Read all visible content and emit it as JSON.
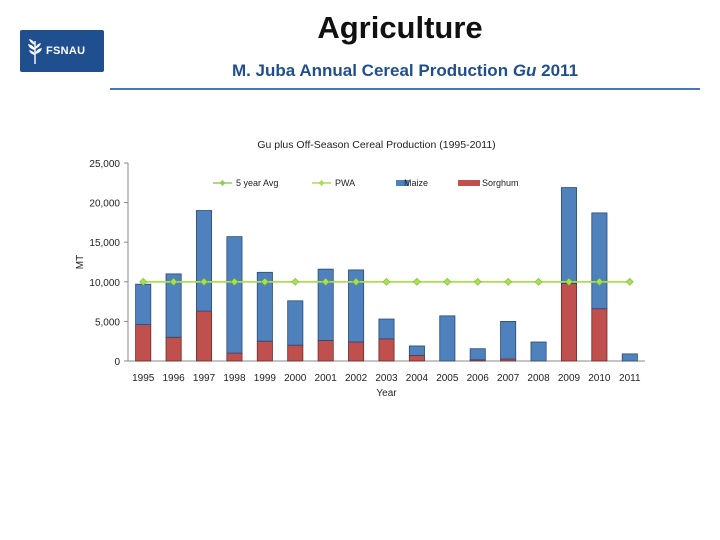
{
  "slide": {
    "title": "Agriculture",
    "subtitle_main": "M. Juba Annual Cereal Production ",
    "subtitle_italic": "Gu",
    "subtitle_year": " 2011",
    "logo_text": "FSNAU"
  },
  "colors": {
    "maize": "#4f81bd",
    "sorghum": "#c0504d",
    "pwa": "#a8e050",
    "five_year_avg": "#8fd14f",
    "accent": "#1f4f8e"
  },
  "chart_data": {
    "type": "bar",
    "stacked": true,
    "title": "Gu plus Off-Season Cereal Production  (1995-2011)",
    "xlabel": "Year",
    "ylabel": "MT",
    "ylim": [
      0,
      25000
    ],
    "yticks": [
      0,
      5000,
      10000,
      15000,
      20000,
      25000
    ],
    "ytick_labels": [
      "0",
      "5,000",
      "10,000",
      "15,000",
      "20,000",
      "25,000"
    ],
    "grid": false,
    "categories": [
      "1995",
      "1996",
      "1997",
      "1998",
      "1999",
      "2000",
      "2001",
      "2002",
      "2003",
      "2004",
      "2005",
      "2006",
      "2007",
      "2008",
      "2009",
      "2010",
      "2011"
    ],
    "series": [
      {
        "name": "Sorghum",
        "kind": "bar",
        "values": [
          4600,
          3000,
          6300,
          1000,
          2500,
          2000,
          2600,
          2400,
          2800,
          700,
          0,
          150,
          250,
          0,
          9800,
          6600,
          0
        ]
      },
      {
        "name": "Maize",
        "kind": "bar",
        "values": [
          5100,
          8000,
          12700,
          14700,
          8700,
          5600,
          9000,
          9100,
          2500,
          1200,
          5700,
          1400,
          4750,
          2400,
          12100,
          12100,
          900
        ]
      },
      {
        "name": "5 year Avg",
        "kind": "line",
        "values": [
          10000,
          10000,
          10000,
          10000,
          10000,
          10000,
          10000,
          10000,
          10000,
          10000,
          10000,
          10000,
          10000,
          10000,
          10000,
          10000,
          10000
        ]
      },
      {
        "name": "PWA",
        "kind": "line",
        "values": [
          10000,
          10000,
          10000,
          10000,
          10000,
          10000,
          10000,
          10000,
          10000,
          10000,
          10000,
          10000,
          10000,
          10000,
          10000,
          10000,
          10000
        ]
      }
    ],
    "legend": [
      "5 year Avg",
      "PWA",
      "Maize",
      "Sorghum"
    ],
    "legend_position": "top-inside"
  }
}
